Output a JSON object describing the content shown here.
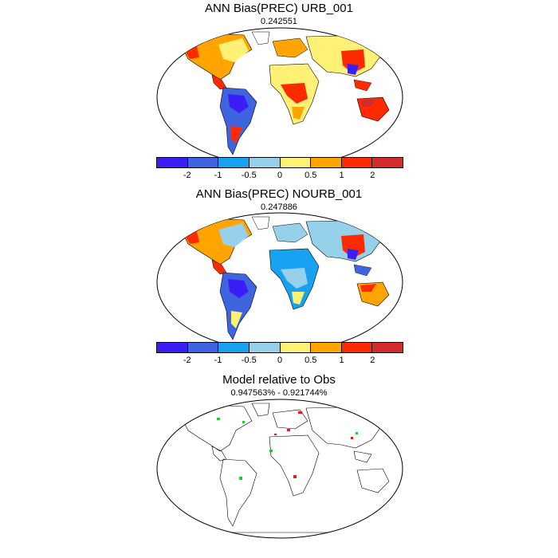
{
  "panels": [
    {
      "title": "ANN Bias(PREC) URB_001",
      "subtitle": "0.242551"
    },
    {
      "title": "ANN Bias(PREC) NOURB_001",
      "subtitle": "0.247886"
    },
    {
      "title": "Model relative to Obs",
      "subtitle": "0.947563% - 0.921744%"
    }
  ],
  "colorbar": {
    "colors": [
      "#3b1ef5",
      "#3f64e0",
      "#16a2f0",
      "#96d0ea",
      "#fff176",
      "#ffa400",
      "#ff2a00",
      "#d42c2c"
    ],
    "labels": [
      "-2",
      "-1",
      "-0.5",
      "0",
      "0.5",
      "1",
      "2"
    ]
  },
  "land_colors": {
    "diff_green": "#22cc22",
    "diff_red": "#e02020"
  }
}
